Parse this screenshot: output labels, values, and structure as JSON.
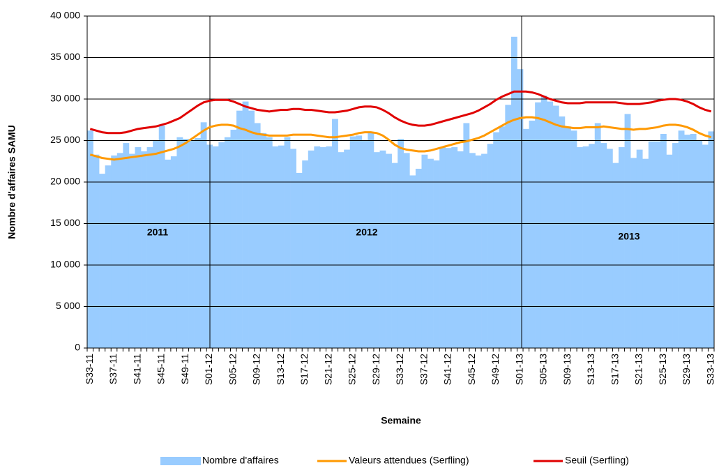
{
  "chart_data": {
    "type": "bar",
    "x_label": "Semaine",
    "y_label": "Nombre d'affaires SAMU",
    "annotations": [
      "2011",
      "2012",
      "2013"
    ],
    "categories": [
      "S33-11",
      null,
      null,
      null,
      "S37-11",
      null,
      null,
      null,
      "S41-11",
      null,
      null,
      null,
      "S45-11",
      null,
      null,
      null,
      "S49-11",
      null,
      null,
      null,
      "S01-12",
      null,
      null,
      null,
      "S05-12",
      null,
      null,
      null,
      "S09-12",
      null,
      null,
      null,
      "S13-12",
      null,
      null,
      null,
      "S17-12",
      null,
      null,
      null,
      "S21-12",
      null,
      null,
      null,
      "S25-12",
      null,
      null,
      null,
      "S29-12",
      null,
      null,
      null,
      "S33-12",
      null,
      null,
      null,
      "S37-12",
      null,
      null,
      null,
      "S41-12",
      null,
      null,
      null,
      "S45-12",
      null,
      null,
      null,
      "S49-12",
      null,
      null,
      null,
      "S01-13",
      null,
      null,
      null,
      "S05-13",
      null,
      null,
      null,
      "S09-13",
      null,
      null,
      null,
      "S13-13",
      null,
      null,
      null,
      "S17-13",
      null,
      null,
      null,
      "S21-13",
      null,
      null,
      null,
      "S25-13",
      null,
      null,
      null,
      "S29-13",
      null,
      null,
      null,
      "S33-13"
    ],
    "series": [
      {
        "name": "Nombre d'affaires",
        "type": "bar",
        "color": "#99ccff",
        "values": [
          26200,
          23300,
          21000,
          22000,
          23200,
          23500,
          24700,
          23400,
          24200,
          23700,
          24200,
          25000,
          26800,
          22700,
          23100,
          25400,
          25200,
          25000,
          25300,
          27200,
          24500,
          24300,
          24800,
          25400,
          26300,
          28600,
          29700,
          28600,
          27100,
          25900,
          25400,
          24300,
          24400,
          25400,
          24000,
          21100,
          22600,
          23800,
          24300,
          24200,
          24300,
          27600,
          23600,
          23900,
          25500,
          25600,
          25000,
          25900,
          23600,
          23800,
          23400,
          22300,
          25200,
          23500,
          20800,
          21600,
          23300,
          22800,
          22600,
          24200,
          24100,
          24200,
          23700,
          27100,
          23500,
          23200,
          23400,
          24600,
          26000,
          26700,
          29300,
          37500,
          33600,
          26400,
          27400,
          29600,
          30400,
          29700,
          29200,
          27900,
          26700,
          26200,
          24200,
          24300,
          24600,
          27100,
          24700,
          24000,
          22300,
          24200,
          28200,
          22900,
          23900,
          22800,
          24900,
          24900,
          25800,
          23300,
          24700,
          26200,
          25700,
          25800,
          25000,
          24500,
          26100
        ]
      },
      {
        "name": "Valeurs attendues (Serfling)",
        "type": "line",
        "color": "#ff9900",
        "values": [
          23300,
          23100,
          22900,
          22800,
          22700,
          22800,
          22900,
          23000,
          23100,
          23200,
          23300,
          23400,
          23600,
          23800,
          24000,
          24300,
          24700,
          25200,
          25700,
          26200,
          26600,
          26800,
          26900,
          26900,
          26800,
          26500,
          26300,
          26000,
          25800,
          25700,
          25600,
          25600,
          25600,
          25600,
          25700,
          25700,
          25700,
          25700,
          25600,
          25500,
          25400,
          25400,
          25500,
          25600,
          25700,
          25900,
          26000,
          26000,
          25900,
          25600,
          25100,
          24500,
          24100,
          23900,
          23800,
          23700,
          23700,
          23800,
          24000,
          24200,
          24400,
          24600,
          24800,
          24900,
          25100,
          25300,
          25600,
          26000,
          26400,
          26800,
          27200,
          27500,
          27700,
          27800,
          27800,
          27700,
          27500,
          27200,
          26900,
          26700,
          26600,
          26500,
          26500,
          26600,
          26600,
          26600,
          26700,
          26600,
          26500,
          26400,
          26400,
          26300,
          26400,
          26400,
          26500,
          26600,
          26800,
          26900,
          26900,
          26800,
          26600,
          26300,
          25900,
          25600,
          25400
        ]
      },
      {
        "name": "Seuil (Serfling)",
        "type": "line",
        "color": "#e00000",
        "values": [
          26400,
          26200,
          26000,
          25900,
          25900,
          25900,
          26000,
          26200,
          26400,
          26500,
          26600,
          26700,
          26900,
          27100,
          27400,
          27700,
          28200,
          28700,
          29200,
          29600,
          29800,
          29900,
          29900,
          29900,
          29700,
          29400,
          29100,
          28900,
          28700,
          28600,
          28500,
          28600,
          28700,
          28700,
          28800,
          28800,
          28700,
          28700,
          28600,
          28500,
          28400,
          28400,
          28500,
          28600,
          28800,
          29000,
          29100,
          29100,
          29000,
          28700,
          28300,
          27800,
          27400,
          27100,
          26900,
          26800,
          26800,
          26900,
          27100,
          27300,
          27500,
          27700,
          27900,
          28100,
          28300,
          28600,
          29000,
          29400,
          29900,
          30300,
          30600,
          30900,
          30900,
          30900,
          30800,
          30600,
          30300,
          30000,
          29800,
          29600,
          29500,
          29500,
          29500,
          29600,
          29600,
          29600,
          29600,
          29600,
          29600,
          29500,
          29400,
          29400,
          29400,
          29500,
          29600,
          29800,
          29900,
          30000,
          30000,
          29900,
          29700,
          29400,
          29000,
          28700,
          28500
        ]
      }
    ],
    "ylim": [
      0,
      40000
    ],
    "yticks": [
      0,
      {
        "value": 5000,
        "label": "5 000"
      },
      {
        "value": 10000,
        "label": "10 000"
      },
      {
        "value": 15000,
        "label": "15 000"
      },
      {
        "value": 20000,
        "label": "20 000"
      },
      {
        "value": 25000,
        "label": "25 000"
      },
      {
        "value": 30000,
        "label": "30 000"
      },
      {
        "value": 35000,
        "label": "35 000"
      },
      {
        "value": 40000,
        "label": "40 000"
      }
    ],
    "grid": true,
    "legend": "bottom"
  }
}
